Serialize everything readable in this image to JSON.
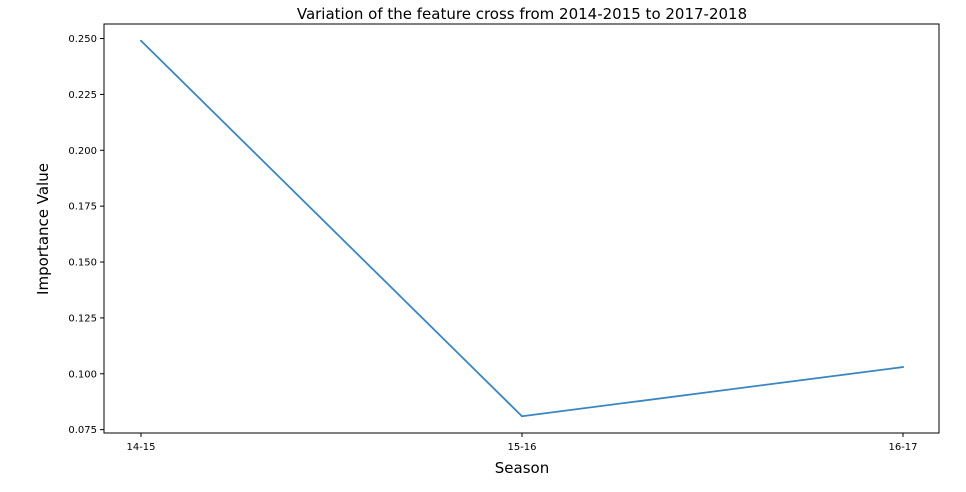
{
  "chart_data": {
    "type": "line",
    "title": "Variation of the feature cross from 2014-2015 to 2017-2018",
    "xlabel": "Season",
    "ylabel": "Importance Value",
    "categories": [
      "14-15",
      "15-16",
      "16-17"
    ],
    "series": [
      {
        "values": [
          0.249,
          0.081,
          0.103
        ]
      }
    ],
    "ylim": [
      0.0735,
      0.2565
    ],
    "yticks": [
      0.075,
      0.1,
      0.125,
      0.15,
      0.175,
      0.2,
      0.225,
      0.25
    ],
    "ytick_labels": [
      "0.075",
      "0.100",
      "0.125",
      "0.150",
      "0.175",
      "0.200",
      "0.225",
      "0.250"
    ],
    "grid": false,
    "line_color": "#3a86c0"
  }
}
